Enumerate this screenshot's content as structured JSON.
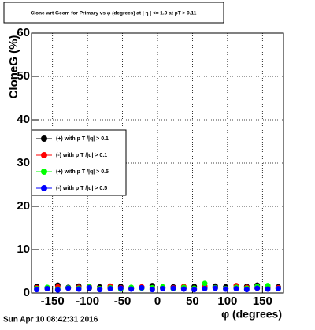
{
  "chart_data": {
    "type": "scatter",
    "title": "Clone wrt Geom for Primary vs φ (degrees) at | η | <= 1.0 at pT > 0.11",
    "xlabel": "φ (degrees)",
    "ylabel": "CloneG (%)",
    "timestamp": "Sun Apr 10 08:42:31 2016",
    "x": [
      -172.5,
      -157.5,
      -142.5,
      -127.5,
      -112.5,
      -97.5,
      -82.5,
      -67.5,
      -52.5,
      -37.5,
      -22.5,
      -7.5,
      7.5,
      22.5,
      37.5,
      52.5,
      67.5,
      82.5,
      97.5,
      112.5,
      127.5,
      142.5,
      157.5,
      172.5
    ],
    "series": [
      {
        "name": "(+) with p T /|q| > 0.1",
        "color": "#000000",
        "values": [
          1.5,
          1.2,
          1.8,
          1.3,
          1.6,
          1.1,
          1.4,
          1.2,
          1.5,
          1.0,
          1.3,
          1.7,
          1.2,
          1.4,
          1.1,
          1.5,
          1.3,
          1.6,
          1.4,
          1.2,
          1.5,
          1.8,
          1.3,
          1.4
        ]
      },
      {
        "name": "(-) with p T /|q| > 0.1",
        "color": "#ff0000",
        "values": [
          1.2,
          1.0,
          1.4,
          1.1,
          1.3,
          1.5,
          1.0,
          1.6,
          1.2,
          1.1,
          1.4,
          1.0,
          1.3,
          1.2,
          1.5,
          1.1,
          1.6,
          1.2,
          1.0,
          1.7,
          1.3,
          1.1,
          1.4,
          1.2
        ]
      },
      {
        "name": "(+) with p T /|q| > 0.5",
        "color": "#00ff00",
        "values": [
          1.0,
          1.3,
          0.9,
          1.2,
          1.1,
          1.4,
          1.0,
          1.2,
          0.9,
          1.3,
          1.1,
          1.2,
          1.4,
          1.0,
          1.3,
          1.1,
          2.2,
          1.2,
          1.0,
          1.3,
          1.1,
          1.5,
          1.7,
          1.0
        ]
      },
      {
        "name": "(-) with p T /|q| > 0.5",
        "color": "#0000ff",
        "values": [
          0.8,
          1.0,
          0.7,
          1.1,
          0.9,
          1.2,
          0.8,
          1.0,
          1.1,
          0.9,
          1.2,
          0.8,
          1.0,
          1.1,
          0.9,
          0.8,
          1.0,
          1.1,
          0.9,
          1.0,
          0.8,
          1.1,
          0.9,
          1.0
        ]
      }
    ],
    "xlim": [
      -180,
      180
    ],
    "xticks": [
      -150,
      -100,
      -50,
      0,
      50,
      100,
      150
    ],
    "ylim": [
      0,
      60
    ],
    "yticks": [
      0,
      10,
      20,
      30,
      40,
      50,
      60
    ],
    "grid": true,
    "legend": "left"
  }
}
